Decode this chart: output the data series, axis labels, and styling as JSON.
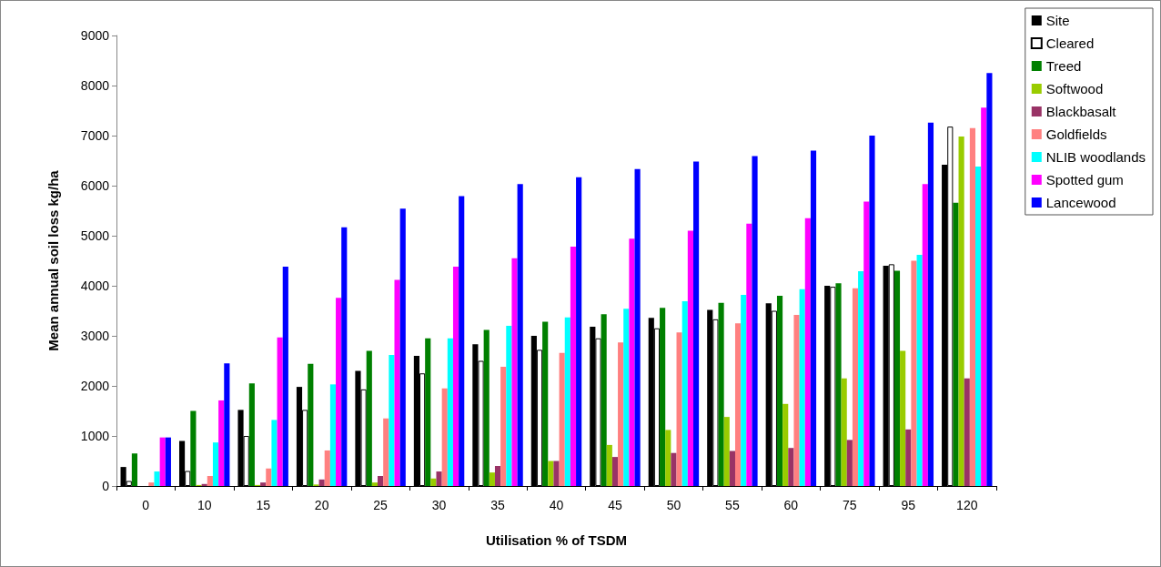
{
  "chart_data": {
    "type": "bar",
    "xlabel": "Utilisation % of TSDM",
    "ylabel": "Mean annual soil loss kg/ha",
    "categories": [
      "0",
      "10",
      "15",
      "20",
      "25",
      "30",
      "35",
      "40",
      "45",
      "50",
      "55",
      "60",
      "75",
      "95",
      "120"
    ],
    "series": [
      {
        "name": "Site",
        "color": "#000000",
        "values": [
          380,
          900,
          1520,
          1980,
          2300,
          2600,
          2830,
          3000,
          3180,
          3360,
          3520,
          3650,
          4000,
          4400,
          6420
        ]
      },
      {
        "name": "Cleared",
        "color": "#ffffff",
        "values": [
          100,
          300,
          1000,
          1520,
          1930,
          2250,
          2500,
          2720,
          2950,
          3150,
          3330,
          3500,
          3980,
          4430,
          7180
        ]
      },
      {
        "name": "Treed",
        "color": "#008000",
        "values": [
          650,
          1500,
          2050,
          2440,
          2700,
          2950,
          3120,
          3280,
          3430,
          3560,
          3660,
          3800,
          4050,
          4300,
          5660
        ]
      },
      {
        "name": "Softwood",
        "color": "#99cc00",
        "values": [
          0,
          20,
          20,
          30,
          70,
          150,
          270,
          500,
          820,
          1120,
          1380,
          1640,
          2150,
          2700,
          6980
        ]
      },
      {
        "name": "Blackbasalt",
        "color": "#993366",
        "values": [
          0,
          40,
          70,
          130,
          200,
          290,
          400,
          500,
          580,
          660,
          700,
          760,
          920,
          1130,
          2150
        ]
      },
      {
        "name": "Goldfields",
        "color": "#ff8080",
        "values": [
          70,
          200,
          350,
          710,
          1350,
          1950,
          2380,
          2660,
          2870,
          3070,
          3250,
          3420,
          3950,
          4500,
          7150
        ]
      },
      {
        "name": "NLIB woodlands",
        "color": "#00ffff",
        "values": [
          290,
          870,
          1320,
          2030,
          2620,
          2950,
          3200,
          3370,
          3540,
          3690,
          3820,
          3930,
          4290,
          4620,
          6380
        ]
      },
      {
        "name": "Spotted gum",
        "color": "#ff00ff",
        "values": [
          970,
          1710,
          2970,
          3760,
          4120,
          4380,
          4550,
          4780,
          4940,
          5100,
          5240,
          5350,
          5680,
          6030,
          7560
        ]
      },
      {
        "name": "Lancewood",
        "color": "#0000ff",
        "values": [
          970,
          2450,
          4380,
          5170,
          5540,
          5790,
          6030,
          6170,
          6330,
          6480,
          6590,
          6700,
          7000,
          7260,
          8250
        ]
      }
    ],
    "ylim": [
      0,
      9000
    ],
    "yticks": [
      0,
      1000,
      2000,
      3000,
      4000,
      5000,
      6000,
      7000,
      8000,
      9000
    ],
    "grid": false,
    "legend": "top right"
  }
}
